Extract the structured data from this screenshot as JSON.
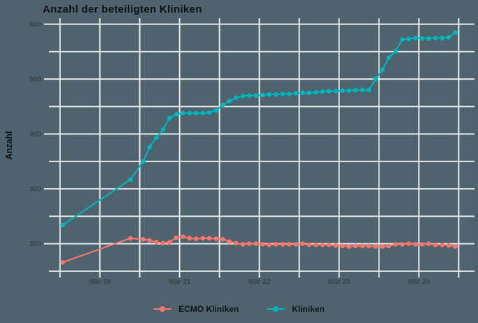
{
  "title": "Anzahl der beteiligten Kliniken",
  "y_axis": {
    "title": "Anzahl"
  },
  "legend": {
    "position": "bottom-center",
    "items": [
      {
        "label": "ECMO Kliniken",
        "color": "#f8766d",
        "marker": "line-with-dot"
      },
      {
        "label": "Kliniken",
        "color": "#00b5bd",
        "marker": "line-with-dot"
      }
    ]
  },
  "colors": {
    "background": "#4e636d",
    "gridline": "#e7e9ea",
    "tick_mark": "#e7e9ea",
    "tick_label": "#3d4246",
    "title_text": "#101214",
    "ecmo_series": "#f8766d",
    "kliniken_series": "#00b5bd"
  },
  "chart_data": {
    "type": "line",
    "title": "Anzahl der beteiligten Kliniken",
    "xlabel": "",
    "ylabel": "Anzahl",
    "x_unit": "decimal_year",
    "xlim": [
      2019.529,
      2024.865
    ],
    "ylim": [
      146,
      611
    ],
    "grid": "on",
    "legend_position": "bottom",
    "y_gridlines": [
      150,
      200,
      250,
      300,
      350,
      400,
      450,
      500,
      550,
      600
    ],
    "y_major_ticks": [
      {
        "v": 200,
        "label": "200"
      },
      {
        "v": 300,
        "label": "300"
      },
      {
        "v": 400,
        "label": "400"
      },
      {
        "v": 500,
        "label": "500"
      },
      {
        "v": 600,
        "label": "600"
      }
    ],
    "x_major_ticks": [
      {
        "t": 2020.167,
        "label": "Mär 20"
      },
      {
        "t": 2021.167,
        "label": "Mär 21"
      },
      {
        "t": 2022.167,
        "label": "Mär 22"
      },
      {
        "t": 2023.167,
        "label": "Mär 23"
      },
      {
        "t": 2024.167,
        "label": "Mär 24"
      }
    ],
    "x_minor_ticks": [
      2019.667,
      2020.667,
      2021.667,
      2022.667,
      2023.667,
      2024.667
    ],
    "x": [
      2019.7,
      2020.55,
      2020.71,
      2020.79,
      2020.875,
      2020.96,
      2021.04,
      2021.125,
      2021.21,
      2021.29,
      2021.375,
      2021.46,
      2021.54,
      2021.625,
      2021.71,
      2021.79,
      2021.875,
      2021.96,
      2022.04,
      2022.125,
      2022.21,
      2022.29,
      2022.375,
      2022.46,
      2022.54,
      2022.625,
      2022.71,
      2022.79,
      2022.875,
      2022.96,
      2023.04,
      2023.125,
      2023.21,
      2023.29,
      2023.375,
      2023.46,
      2023.54,
      2023.625,
      2023.71,
      2023.79,
      2023.875,
      2023.96,
      2024.04,
      2024.125,
      2024.21,
      2024.29,
      2024.375,
      2024.46,
      2024.54,
      2024.625
    ],
    "series": [
      {
        "name": "ECMO Kliniken",
        "color": "#f8766d",
        "values": [
          166,
          210,
          208,
          206,
          203,
          201,
          203,
          211,
          213,
          210,
          209,
          210,
          210,
          209,
          208,
          204,
          201,
          199,
          200,
          200,
          199,
          198,
          199,
          199,
          199,
          199,
          200,
          198,
          198,
          198,
          198,
          197,
          196,
          195,
          196,
          196,
          196,
          195,
          195,
          196,
          199,
          199,
          200,
          199,
          199,
          200,
          198,
          198,
          197,
          195
        ]
      },
      {
        "name": "Kliniken",
        "color": "#00b5bd",
        "values": [
          234,
          317,
          350,
          376,
          393,
          408,
          429,
          436,
          438,
          438,
          438,
          438,
          439,
          443,
          453,
          460,
          466,
          469,
          470,
          470,
          471,
          472,
          472,
          473,
          473,
          474,
          475,
          475,
          476,
          477,
          478,
          478,
          479,
          479,
          480,
          480,
          480,
          500,
          517,
          539,
          551,
          572,
          573,
          575,
          574,
          574,
          575,
          575,
          576,
          585
        ]
      }
    ]
  }
}
